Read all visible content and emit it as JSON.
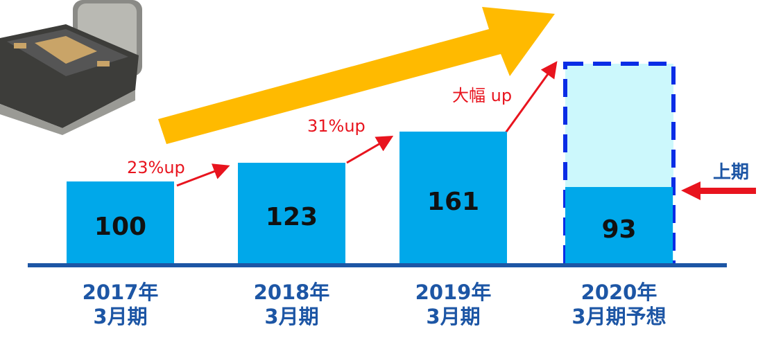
{
  "chart_data": {
    "type": "bar",
    "categories": [
      "2017年\n3月期",
      "2018年\n3月期",
      "2019年\n3月期",
      "2020年\n3月期予想"
    ],
    "values": [
      100,
      123,
      161,
      93
    ],
    "color": "#00a8ea",
    "annotations": [
      "23%up",
      "31%up",
      "大幅 up",
      "上期"
    ]
  }
}
